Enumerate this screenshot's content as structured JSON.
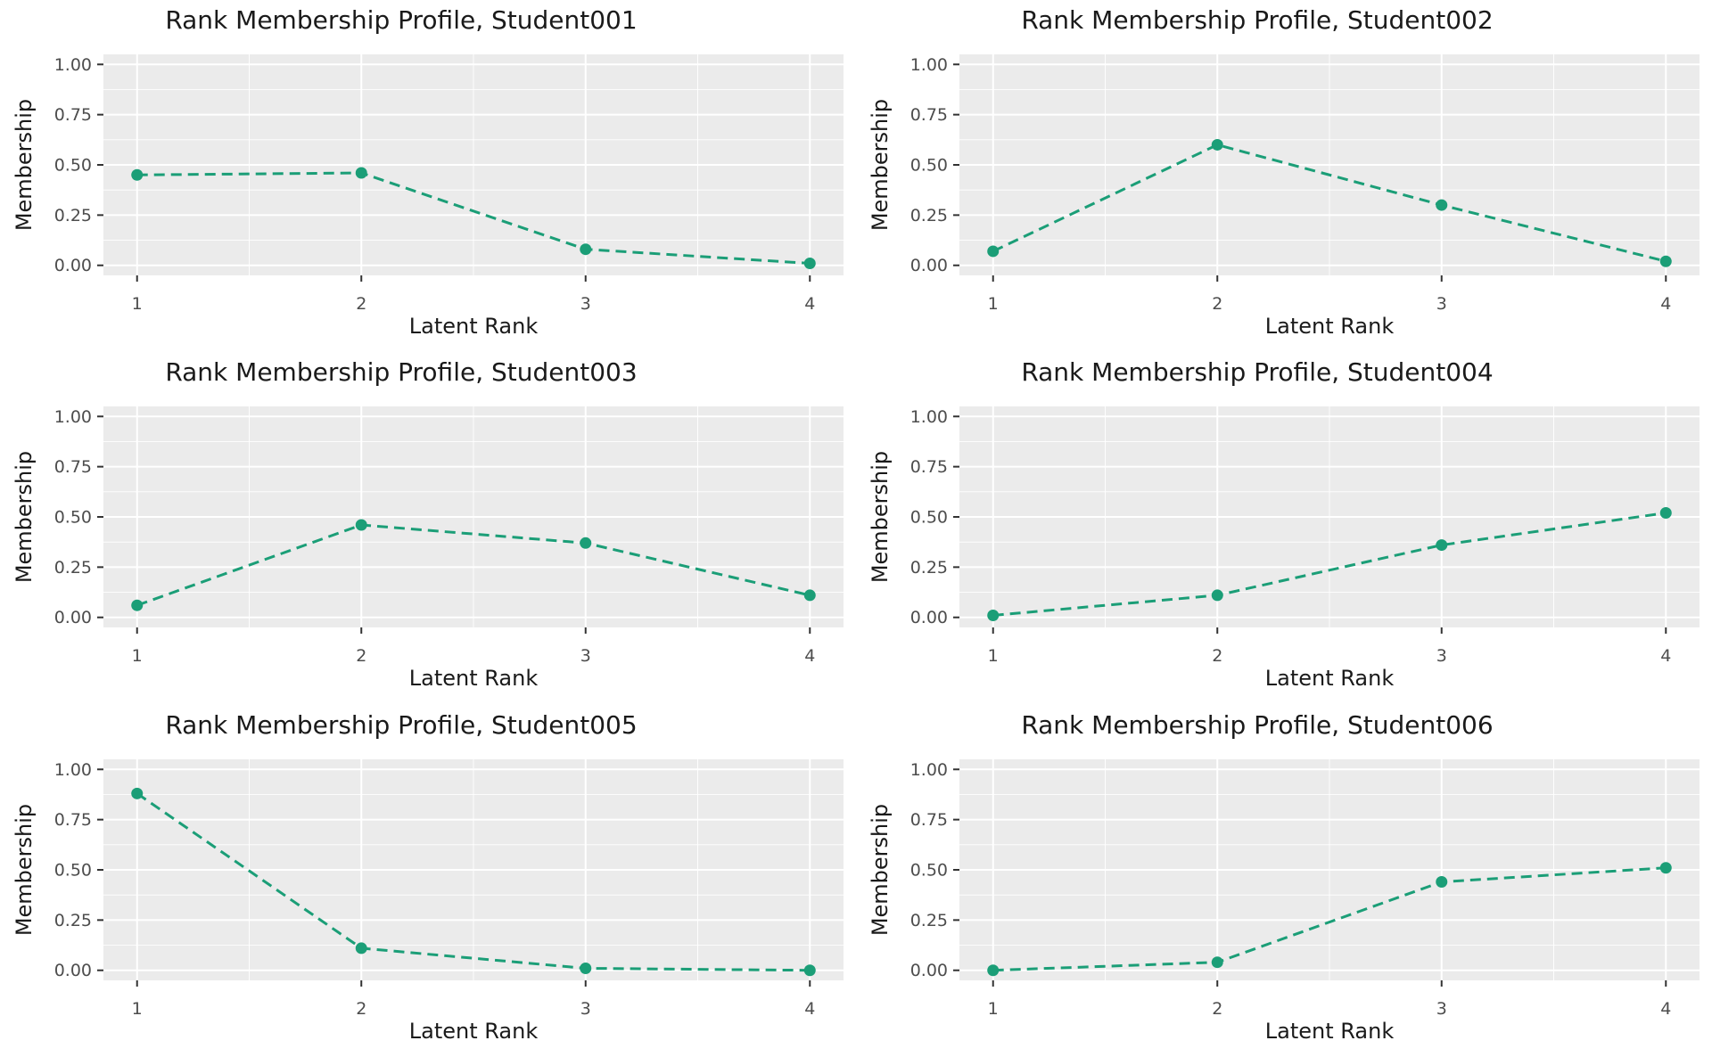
{
  "figure": {
    "background": "#ffffff",
    "rows": 3,
    "cols": 2
  },
  "style": {
    "panel_bg": "#ebebeb",
    "grid_major_color": "#ffffff",
    "grid_minor_color": "#ffffff",
    "grid_major_width": 2,
    "grid_minor_width": 0.9,
    "line_color": "#1b9e77",
    "marker_color": "#1b9e77",
    "tick_color": "#333333",
    "tick_label_color": "#4d4d4d",
    "title_color": "#1a1a1a",
    "axis_title_color": "#1a1a1a"
  },
  "chart_data": [
    {
      "type": "line",
      "student": "Student001",
      "title": "Rank Membership Profile, Student001",
      "xlabel": "Latent Rank",
      "ylabel": "Membership",
      "x": [
        1,
        2,
        3,
        4
      ],
      "values": [
        0.45,
        0.46,
        0.08,
        0.01
      ],
      "xlim": [
        1,
        4
      ],
      "ylim": [
        0,
        1
      ],
      "xticks": [
        1,
        2,
        3,
        4
      ],
      "xtick_labels": [
        "1",
        "2",
        "3",
        "4"
      ],
      "yticks": [
        0,
        0.25,
        0.5,
        0.75,
        1
      ],
      "ytick_labels": [
        "0.00",
        "0.25",
        "0.50",
        "0.75",
        "1.00"
      ],
      "grid": true,
      "legend_position": "none",
      "line_style": "dashed",
      "marker": "circle"
    },
    {
      "type": "line",
      "student": "Student002",
      "title": "Rank Membership Profile, Student002",
      "xlabel": "Latent Rank",
      "ylabel": "Membership",
      "x": [
        1,
        2,
        3,
        4
      ],
      "values": [
        0.07,
        0.6,
        0.3,
        0.02
      ],
      "xlim": [
        1,
        4
      ],
      "ylim": [
        0,
        1
      ],
      "xticks": [
        1,
        2,
        3,
        4
      ],
      "xtick_labels": [
        "1",
        "2",
        "3",
        "4"
      ],
      "yticks": [
        0,
        0.25,
        0.5,
        0.75,
        1
      ],
      "ytick_labels": [
        "0.00",
        "0.25",
        "0.50",
        "0.75",
        "1.00"
      ],
      "grid": true,
      "legend_position": "none",
      "line_style": "dashed",
      "marker": "circle"
    },
    {
      "type": "line",
      "student": "Student003",
      "title": "Rank Membership Profile, Student003",
      "xlabel": "Latent Rank",
      "ylabel": "Membership",
      "x": [
        1,
        2,
        3,
        4
      ],
      "values": [
        0.06,
        0.46,
        0.37,
        0.11
      ],
      "xlim": [
        1,
        4
      ],
      "ylim": [
        0,
        1
      ],
      "xticks": [
        1,
        2,
        3,
        4
      ],
      "xtick_labels": [
        "1",
        "2",
        "3",
        "4"
      ],
      "yticks": [
        0,
        0.25,
        0.5,
        0.75,
        1
      ],
      "ytick_labels": [
        "0.00",
        "0.25",
        "0.50",
        "0.75",
        "1.00"
      ],
      "grid": true,
      "legend_position": "none",
      "line_style": "dashed",
      "marker": "circle"
    },
    {
      "type": "line",
      "student": "Student004",
      "title": "Rank Membership Profile, Student004",
      "xlabel": "Latent Rank",
      "ylabel": "Membership",
      "x": [
        1,
        2,
        3,
        4
      ],
      "values": [
        0.01,
        0.11,
        0.36,
        0.52
      ],
      "xlim": [
        1,
        4
      ],
      "ylim": [
        0,
        1
      ],
      "xticks": [
        1,
        2,
        3,
        4
      ],
      "xtick_labels": [
        "1",
        "2",
        "3",
        "4"
      ],
      "yticks": [
        0,
        0.25,
        0.5,
        0.75,
        1
      ],
      "ytick_labels": [
        "0.00",
        "0.25",
        "0.50",
        "0.75",
        "1.00"
      ],
      "grid": true,
      "legend_position": "none",
      "line_style": "dashed",
      "marker": "circle"
    },
    {
      "type": "line",
      "student": "Student005",
      "title": "Rank Membership Profile, Student005",
      "xlabel": "Latent Rank",
      "ylabel": "Membership",
      "x": [
        1,
        2,
        3,
        4
      ],
      "values": [
        0.88,
        0.11,
        0.01,
        0.0
      ],
      "xlim": [
        1,
        4
      ],
      "ylim": [
        0,
        1
      ],
      "xticks": [
        1,
        2,
        3,
        4
      ],
      "xtick_labels": [
        "1",
        "2",
        "3",
        "4"
      ],
      "yticks": [
        0,
        0.25,
        0.5,
        0.75,
        1
      ],
      "ytick_labels": [
        "0.00",
        "0.25",
        "0.50",
        "0.75",
        "1.00"
      ],
      "grid": true,
      "legend_position": "none",
      "line_style": "dashed",
      "marker": "circle"
    },
    {
      "type": "line",
      "student": "Student006",
      "title": "Rank Membership Profile, Student006",
      "xlabel": "Latent Rank",
      "ylabel": "Membership",
      "x": [
        1,
        2,
        3,
        4
      ],
      "values": [
        0.0,
        0.04,
        0.44,
        0.51
      ],
      "xlim": [
        1,
        4
      ],
      "ylim": [
        0,
        1
      ],
      "xticks": [
        1,
        2,
        3,
        4
      ],
      "xtick_labels": [
        "1",
        "2",
        "3",
        "4"
      ],
      "yticks": [
        0,
        0.25,
        0.5,
        0.75,
        1
      ],
      "ytick_labels": [
        "0.00",
        "0.25",
        "0.50",
        "0.75",
        "1.00"
      ],
      "grid": true,
      "legend_position": "none",
      "line_style": "dashed",
      "marker": "circle"
    }
  ]
}
